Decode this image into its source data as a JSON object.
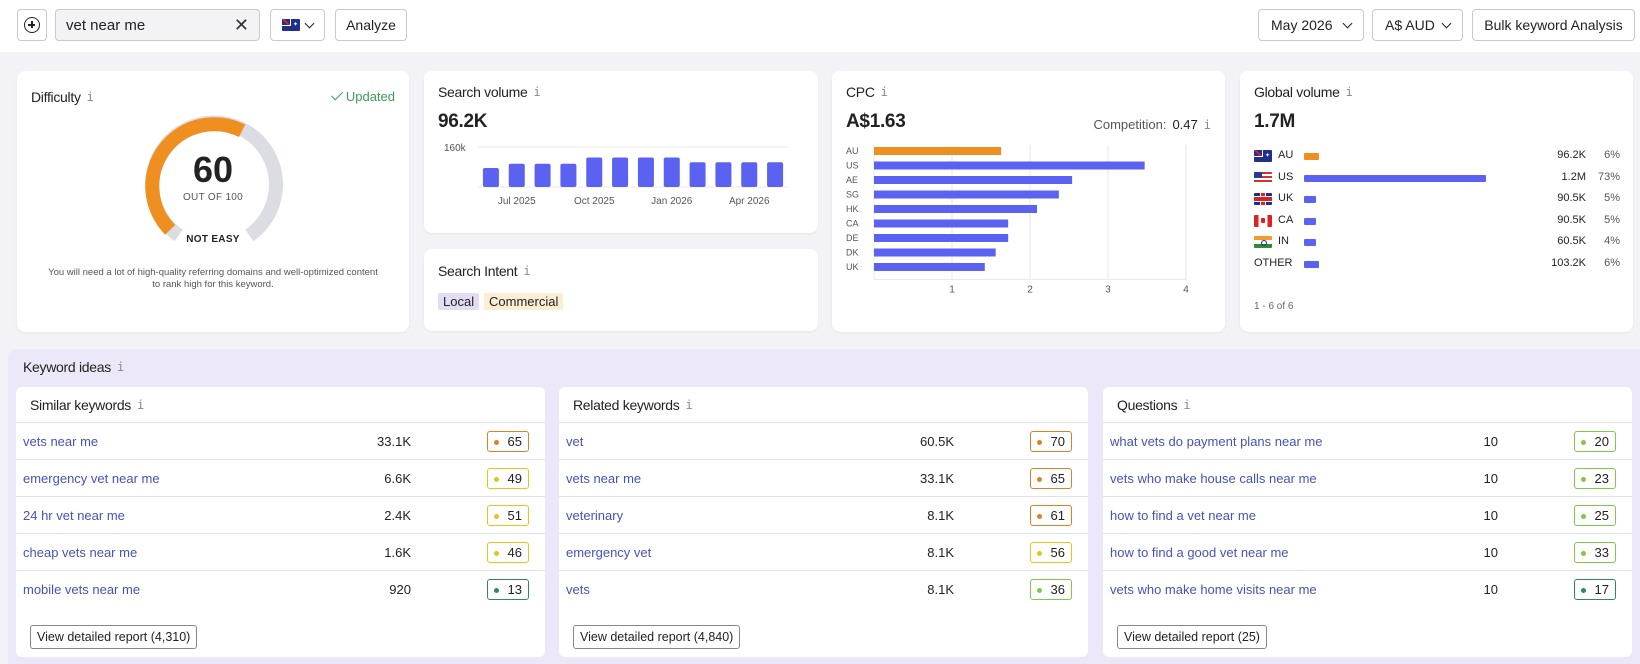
{
  "topbar": {
    "search_value": "vet near me",
    "analyze_label": "Analyze",
    "date": "May 2026",
    "currency": "A$ AUD",
    "bulk_label": "Bulk keyword Analysis",
    "country_flag": "au-flag-icon"
  },
  "difficulty": {
    "title": "Difficulty",
    "updated": "Updated",
    "value": "60",
    "value_num": 60,
    "sub": "OUT OF 100",
    "level": "NOT EASY",
    "description": "You will need a lot of high-quality referring domains and well-optimized content to rank high for this keyword.",
    "color": "#ef8f1f"
  },
  "search_volume": {
    "title": "Search volume",
    "value": "96.2K"
  },
  "search_intent": {
    "title": "Search Intent",
    "tags": [
      "Local",
      "Commercial"
    ]
  },
  "cpc": {
    "title": "CPC",
    "value": "A$1.63",
    "competition_label": "Competition:",
    "competition_value": "0.47"
  },
  "global_volume": {
    "title": "Global volume",
    "value": "1.7M",
    "rows": [
      {
        "flag": "au",
        "code": "AU",
        "volume": "96.2K",
        "share": 6,
        "pct": "6%",
        "color": "#ef8f1f"
      },
      {
        "flag": "us",
        "code": "US",
        "volume": "1.2M",
        "share": 73,
        "pct": "73%",
        "color": "#5b61f0"
      },
      {
        "flag": "uk",
        "code": "UK",
        "volume": "90.5K",
        "share": 5,
        "pct": "5%",
        "color": "#5b61f0"
      },
      {
        "flag": "ca",
        "code": "CA",
        "volume": "90.5K",
        "share": 5,
        "pct": "5%",
        "color": "#5b61f0"
      },
      {
        "flag": "in",
        "code": "IN",
        "volume": "60.5K",
        "share": 4,
        "pct": "4%",
        "color": "#5b61f0"
      },
      {
        "flag": "",
        "code": "OTHER",
        "volume": "103.2K",
        "share": 6,
        "pct": "6%",
        "color": "#5b61f0"
      }
    ],
    "footer": "1 - 6 of 6"
  },
  "chart_data": [
    {
      "type": "bar",
      "title": "Search volume",
      "categories": [
        "Jun 2025",
        "Jul 2025",
        "Aug 2025",
        "Sep 2025",
        "Oct 2025",
        "Nov 2025",
        "Dec 2025",
        "Jan 2026",
        "Feb 2026",
        "Mar 2026",
        "Apr 2026",
        "May 2026"
      ],
      "values": [
        76,
        93,
        93,
        93,
        118,
        118,
        118,
        118,
        99,
        99,
        99,
        99
      ],
      "ylim": [
        0,
        160
      ],
      "yticks": [
        "160k"
      ],
      "xticks": [
        {
          "label": "Jul 2025",
          "index": 1
        },
        {
          "label": "Oct 2025",
          "index": 4
        },
        {
          "label": "Jan 2026",
          "index": 7
        },
        {
          "label": "Apr 2026",
          "index": 10
        }
      ],
      "color": "#5b61f0"
    },
    {
      "type": "bar",
      "orientation": "horizontal",
      "title": "CPC",
      "categories": [
        "AU",
        "US",
        "AE",
        "SG",
        "HK",
        "CA",
        "DE",
        "DK",
        "UK"
      ],
      "values": [
        1.63,
        3.47,
        2.54,
        2.37,
        2.09,
        1.72,
        1.72,
        1.56,
        1.42
      ],
      "xlim": [
        0,
        4
      ],
      "xticks": [
        "1",
        "2",
        "3",
        "4"
      ],
      "highlight": "AU",
      "colors": {
        "highlight": "#ef8f1f",
        "bar": "#5b61f0"
      }
    }
  ],
  "keyword_ideas": {
    "title": "Keyword ideas",
    "panels": [
      {
        "title": "Similar keywords",
        "rows": [
          {
            "kw": "vets near me",
            "vol": "33.1K",
            "kd": "65",
            "color": "#d9822b"
          },
          {
            "kw": "emergency vet near me",
            "vol": "6.6K",
            "kd": "49",
            "color": "#e7c31e"
          },
          {
            "kw": "24 hr vet near me",
            "vol": "2.4K",
            "kd": "51",
            "color": "#e7c31e"
          },
          {
            "kw": "cheap vets near me",
            "vol": "1.6K",
            "kd": "46",
            "color": "#e7c31e"
          },
          {
            "kw": "mobile vets near me",
            "vol": "920",
            "kd": "13",
            "color": "#2f8a5a"
          }
        ],
        "report": "View detailed report (4,310)"
      },
      {
        "title": "Related keywords",
        "rows": [
          {
            "kw": "vet",
            "vol": "60.5K",
            "kd": "70",
            "color": "#d9822b"
          },
          {
            "kw": "vets near me",
            "vol": "33.1K",
            "kd": "65",
            "color": "#d9822b"
          },
          {
            "kw": "veterinary",
            "vol": "8.1K",
            "kd": "61",
            "color": "#d9822b"
          },
          {
            "kw": "emergency vet",
            "vol": "8.1K",
            "kd": "56",
            "color": "#e7c31e"
          },
          {
            "kw": "vets",
            "vol": "8.1K",
            "kd": "36",
            "color": "#7ec94a"
          }
        ],
        "report": "View detailed report (4,840)"
      },
      {
        "title": "Questions",
        "rows": [
          {
            "kw": "what vets do payment plans near me",
            "vol": "10",
            "kd": "20",
            "color": "#7ec94a"
          },
          {
            "kw": "vets who make house calls near me",
            "vol": "10",
            "kd": "23",
            "color": "#7ec94a"
          },
          {
            "kw": "how to find a vet near me",
            "vol": "10",
            "kd": "25",
            "color": "#7ec94a"
          },
          {
            "kw": "how to find a good vet near me",
            "vol": "10",
            "kd": "33",
            "color": "#7ec94a"
          },
          {
            "kw": "vets who make home visits near me",
            "vol": "10",
            "kd": "17",
            "color": "#2f8a5a"
          }
        ],
        "report": "View detailed report (25)"
      }
    ]
  }
}
